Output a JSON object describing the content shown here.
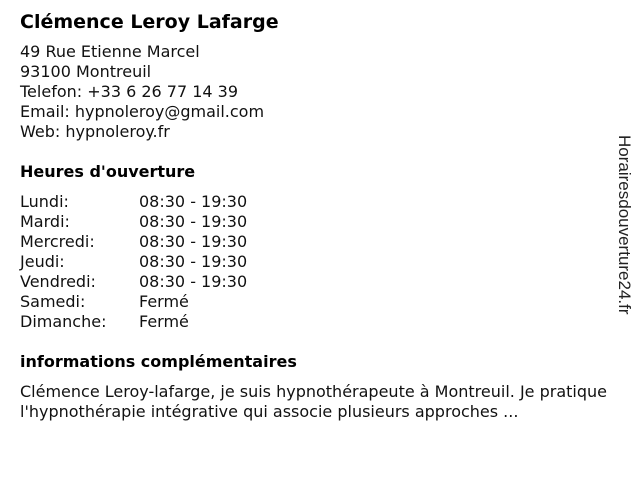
{
  "business": {
    "name": "Clémence Leroy Lafarge",
    "address_line1": "49 Rue Etienne Marcel",
    "address_line2": "93100 Montreuil",
    "phone": "Telefon: +33 6 26 77 14 39",
    "email": "Email: hypnoleroy@gmail.com",
    "web": "Web: hypnoleroy.fr"
  },
  "hours": {
    "heading": "Heures d'ouverture",
    "days": [
      {
        "day": "Lundi:",
        "time": "08:30 - 19:30"
      },
      {
        "day": "Mardi:",
        "time": "08:30 - 19:30"
      },
      {
        "day": "Mercredi:",
        "time": "08:30 - 19:30"
      },
      {
        "day": "Jeudi:",
        "time": "08:30 - 19:30"
      },
      {
        "day": "Vendredi:",
        "time": "08:30 - 19:30"
      },
      {
        "day": "Samedi:",
        "time": "Fermé"
      },
      {
        "day": "Dimanche:",
        "time": "Fermé"
      }
    ]
  },
  "info": {
    "heading": "informations complémentaires",
    "text": "Clémence Leroy-lafarge, je suis hypnothérapeute à Montreuil. Je pratique l'hypnothérapie intégrative qui associe plusieurs approches ..."
  },
  "watermark": "Horairesdouverture24.fr"
}
